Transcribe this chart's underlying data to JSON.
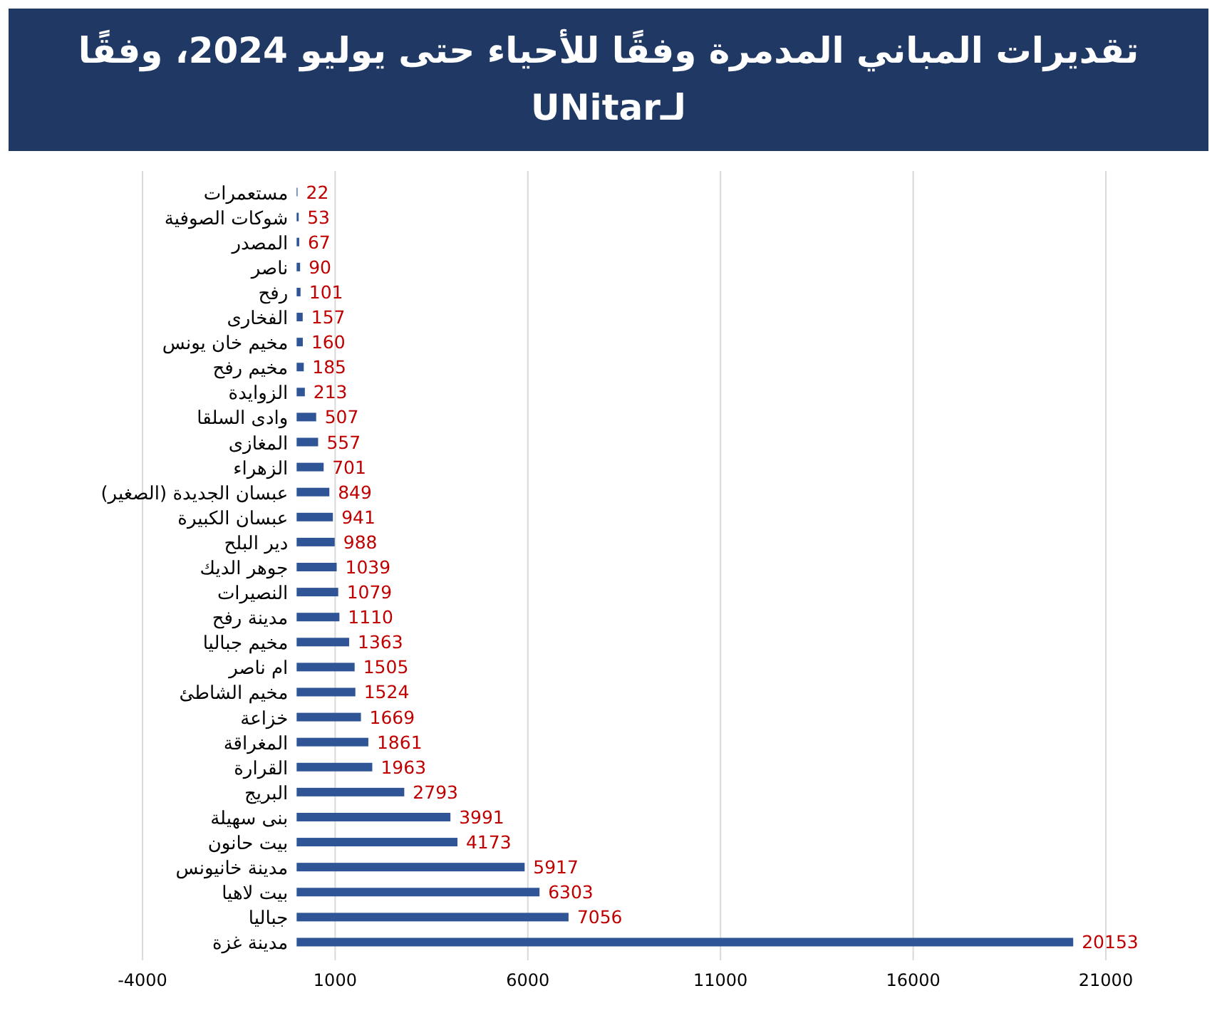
{
  "chart_data": {
    "type": "bar",
    "orientation": "horizontal",
    "title": "تقديرات المباني المدمرة وفقًا للأحياء حتى يوليو 2024، وفقًا لـUNitar",
    "categories": [
      "مستعمرات",
      "شوكات الصوفية",
      "المصدر",
      "ناصر",
      "رفح",
      "الفخارى",
      "مخيم خان يونس",
      "مخيم رفح",
      "الزوايدة",
      "وادى السلقا",
      "المغازى",
      "الزهراء",
      "عبسان الجديدة (الصغير)",
      "عبسان الكبيرة",
      "دير البلح",
      "جوهر الديك",
      "النصيرات",
      "مدينة رفح",
      "مخيم جباليا",
      "ام ناصر",
      "مخيم الشاطئ",
      "خزاعة",
      "المغراقة",
      "القرارة",
      "البريج",
      "بنى سهيلة",
      "بيت حانون",
      "مدينة خانيونس",
      "بيت لاهيا",
      "جباليا",
      "مدينة غزة"
    ],
    "values": [
      22,
      53,
      67,
      90,
      101,
      157,
      160,
      185,
      213,
      507,
      557,
      701,
      849,
      941,
      988,
      1039,
      1079,
      1110,
      1363,
      1505,
      1524,
      1669,
      1861,
      1963,
      2793,
      3991,
      4173,
      5917,
      6303,
      7056,
      20153
    ],
    "color": "#2f5597",
    "xlim": [
      -4000,
      21000
    ],
    "xticks": [
      -4000,
      1000,
      6000,
      11000,
      16000,
      21000
    ],
    "grid": "x",
    "data_labels": true
  }
}
